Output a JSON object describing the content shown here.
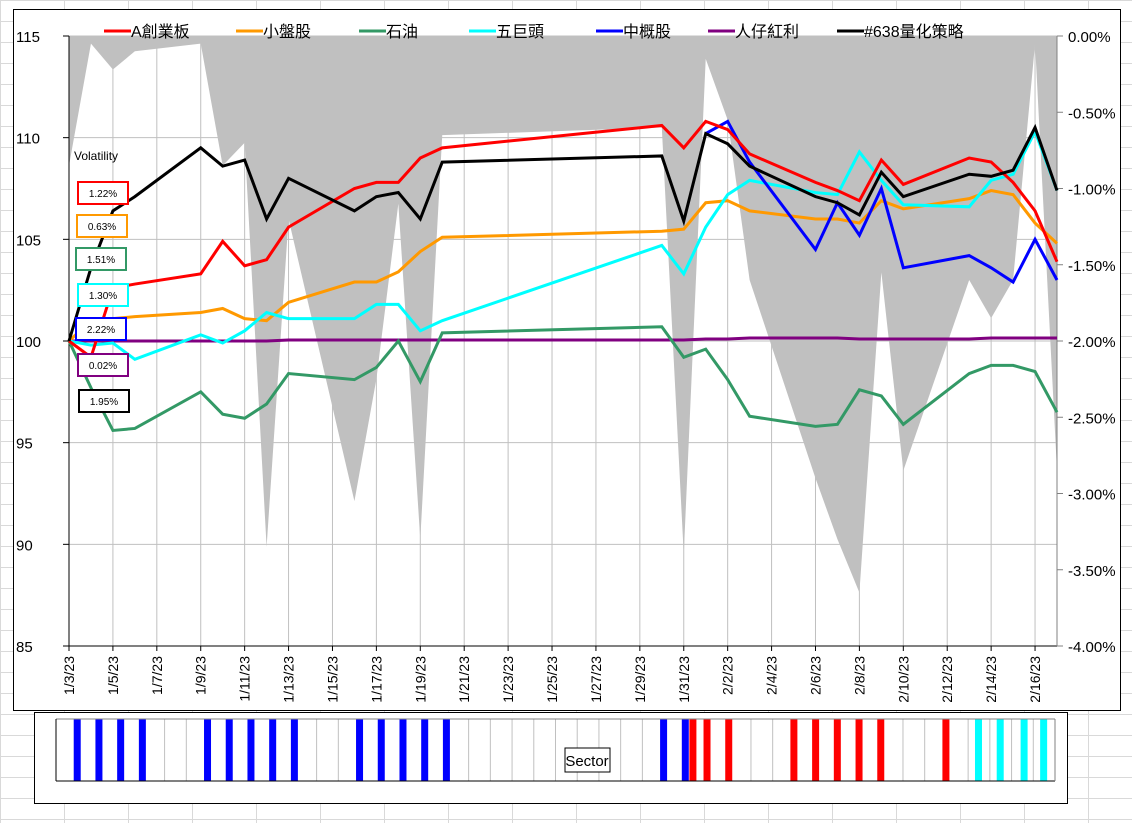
{
  "chart_data": [
    {
      "type": "line",
      "title": "",
      "legend_position": "top",
      "x": [
        "1/3/23",
        "1/4/23",
        "1/5/23",
        "1/6/23",
        "1/9/23",
        "1/10/23",
        "1/11/23",
        "1/12/23",
        "1/13/23",
        "1/16/23",
        "1/17/23",
        "1/18/23",
        "1/19/23",
        "1/20/23",
        "1/30/23",
        "1/31/23",
        "2/1/23",
        "2/2/23",
        "2/3/23",
        "2/6/23",
        "2/7/23",
        "2/8/23",
        "2/9/23",
        "2/10/23",
        "2/13/23",
        "2/14/23",
        "2/15/23",
        "2/16/23",
        "2/17/23"
      ],
      "x_ticks": [
        "1/3/23",
        "1/5/23",
        "1/7/23",
        "1/9/23",
        "1/11/23",
        "1/13/23",
        "1/15/23",
        "1/17/23",
        "1/19/23",
        "1/21/23",
        "1/23/23",
        "1/25/23",
        "1/27/23",
        "1/29/23",
        "1/31/23",
        "2/2/23",
        "2/4/23",
        "2/6/23",
        "2/8/23",
        "2/10/23",
        "2/12/23",
        "2/14/23",
        "2/16/23"
      ],
      "x_range": [
        "1/3/23",
        "2/17/23"
      ],
      "ylim": [
        85,
        115
      ],
      "y_ticks": [
        85,
        90,
        95,
        100,
        105,
        110,
        115
      ],
      "y2lim": [
        -4.0,
        0.0
      ],
      "y2_ticks": [
        "0.00%",
        "-0.50%",
        "-1.00%",
        "-1.50%",
        "-2.00%",
        "-2.50%",
        "-3.00%",
        "-3.50%",
        "-4.00%"
      ],
      "grid": true,
      "series": [
        {
          "name": "A創業板",
          "color": "#ff0000",
          "values": [
            100,
            99.2,
            102.6,
            102.8,
            103.3,
            104.9,
            103.7,
            104.0,
            105.6,
            107.5,
            107.8,
            107.8,
            109.0,
            109.5,
            110.6,
            109.5,
            110.8,
            110.4,
            109.2,
            107.8,
            107.4,
            106.9,
            108.9,
            107.7,
            109.0,
            108.8,
            107.8,
            106.4,
            103.9
          ]
        },
        {
          "name": "小盤股",
          "color": "#ff9900",
          "values": [
            100,
            101.0,
            101.1,
            101.2,
            101.4,
            101.6,
            101.1,
            101.0,
            101.9,
            102.9,
            102.9,
            103.4,
            104.4,
            105.1,
            105.4,
            105.5,
            106.8,
            106.9,
            106.4,
            106.0,
            106.0,
            105.8,
            106.9,
            106.5,
            107.0,
            107.4,
            107.2,
            105.8,
            104.8
          ]
        },
        {
          "name": "石油",
          "color": "#339966",
          "values": [
            100,
            97.7,
            95.6,
            95.7,
            97.5,
            96.4,
            96.2,
            96.9,
            98.4,
            98.1,
            98.7,
            100.0,
            98.0,
            100.4,
            100.7,
            99.2,
            99.6,
            98.1,
            96.3,
            95.8,
            95.9,
            97.6,
            97.3,
            95.9,
            98.4,
            98.8,
            98.8,
            98.5,
            96.5
          ]
        },
        {
          "name": "五巨頭",
          "color": "#00ffff",
          "values": [
            100,
            99.8,
            99.9,
            99.1,
            100.3,
            99.9,
            100.5,
            101.4,
            101.1,
            101.1,
            101.8,
            101.8,
            100.5,
            101.0,
            104.7,
            103.3,
            105.6,
            107.2,
            107.9,
            107.3,
            107.2,
            109.3,
            107.9,
            106.7,
            106.6,
            107.9,
            108.2,
            110.3,
            107.4
          ]
        },
        {
          "name": "中概股",
          "color": "#0000ff",
          "values": [
            null,
            null,
            null,
            null,
            null,
            null,
            null,
            null,
            null,
            null,
            null,
            null,
            null,
            null,
            null,
            null,
            110.2,
            110.8,
            108.8,
            104.5,
            106.8,
            105.2,
            107.5,
            103.6,
            104.2,
            103.6,
            102.9,
            105.0,
            103.0
          ]
        },
        {
          "name": "人仔紅利",
          "color": "#800080",
          "values": [
            100,
            100,
            100,
            100,
            100,
            100,
            100,
            100,
            100.05,
            100.05,
            100.05,
            100.05,
            100.05,
            100.05,
            100.05,
            100.05,
            100.1,
            100.1,
            100.15,
            100.15,
            100.15,
            100.1,
            100.1,
            100.1,
            100.1,
            100.15,
            100.15,
            100.15,
            100.15
          ]
        },
        {
          "name": "#638量化策略",
          "color": "#000000",
          "values": [
            100,
            103.6,
            106.4,
            107.1,
            109.5,
            108.6,
            108.9,
            106.0,
            108.0,
            106.4,
            107.1,
            107.3,
            106.0,
            108.8,
            109.1,
            105.9,
            110.2,
            109.7,
            108.6,
            107.1,
            106.8,
            106.2,
            108.3,
            107.1,
            108.2,
            108.1,
            108.4,
            110.5,
            107.4
          ]
        }
      ],
      "drawdown_area": {
        "axis": "secondary",
        "color": "#c0c0c0",
        "values": [
          -0.85,
          -0.05,
          -0.22,
          -0.1,
          -0.05,
          -0.85,
          -0.7,
          -3.35,
          -1.2,
          -3.05,
          -2.25,
          -1.1,
          -3.3,
          -0.65,
          -0.6,
          -3.4,
          -0.15,
          -0.55,
          -1.6,
          -2.9,
          -3.3,
          -3.65,
          -1.55,
          -2.85,
          -1.6,
          -1.85,
          -1.6,
          -0.05,
          -2.85
        ]
      },
      "annotations": {
        "volatility_label": "Volatility",
        "volatility": [
          {
            "series": "A創業板",
            "value": "1.22%",
            "color": "#ff0000"
          },
          {
            "series": "小盤股",
            "value": "0.63%",
            "color": "#ff9900"
          },
          {
            "series": "石油",
            "value": "1.51%",
            "color": "#339966"
          },
          {
            "series": "五巨頭",
            "value": "1.30%",
            "color": "#00ffff"
          },
          {
            "series": "中概股",
            "value": "2.22%",
            "color": "#0000ff"
          },
          {
            "series": "人仔紅利",
            "value": "0.02%",
            "color": "#800080"
          },
          {
            "series": "#638量化策略",
            "value": "1.95%",
            "color": "#000000"
          }
        ]
      }
    },
    {
      "type": "bar",
      "title": "Sector",
      "categories_count": 46,
      "bars": [
        {
          "slot": 1,
          "color": "#0000ff"
        },
        {
          "slot": 2,
          "color": "#0000ff"
        },
        {
          "slot": 3,
          "color": "#0000ff"
        },
        {
          "slot": 4,
          "color": "#0000ff"
        },
        {
          "slot": 7,
          "color": "#0000ff"
        },
        {
          "slot": 8,
          "color": "#0000ff"
        },
        {
          "slot": 9,
          "color": "#0000ff"
        },
        {
          "slot": 10,
          "color": "#0000ff"
        },
        {
          "slot": 11,
          "color": "#0000ff"
        },
        {
          "slot": 14,
          "color": "#0000ff"
        },
        {
          "slot": 15,
          "color": "#0000ff"
        },
        {
          "slot": 16,
          "color": "#0000ff"
        },
        {
          "slot": 17,
          "color": "#0000ff"
        },
        {
          "slot": 18,
          "color": "#0000ff"
        },
        {
          "slot": 28,
          "color": "#0000ff"
        },
        {
          "slot": 29,
          "color": "#0000ff"
        },
        {
          "slot": 29.35,
          "color": "#ff0000"
        },
        {
          "slot": 30,
          "color": "#ff0000"
        },
        {
          "slot": 31,
          "color": "#ff0000"
        },
        {
          "slot": 34,
          "color": "#ff0000"
        },
        {
          "slot": 35,
          "color": "#ff0000"
        },
        {
          "slot": 36,
          "color": "#ff0000"
        },
        {
          "slot": 37,
          "color": "#ff0000"
        },
        {
          "slot": 38,
          "color": "#ff0000"
        },
        {
          "slot": 41,
          "color": "#ff0000"
        },
        {
          "slot": 42.5,
          "color": "#00ffff"
        },
        {
          "slot": 43.5,
          "color": "#00ffff"
        },
        {
          "slot": 44.6,
          "color": "#00ffff"
        },
        {
          "slot": 45.5,
          "color": "#00ffff"
        }
      ]
    }
  ]
}
